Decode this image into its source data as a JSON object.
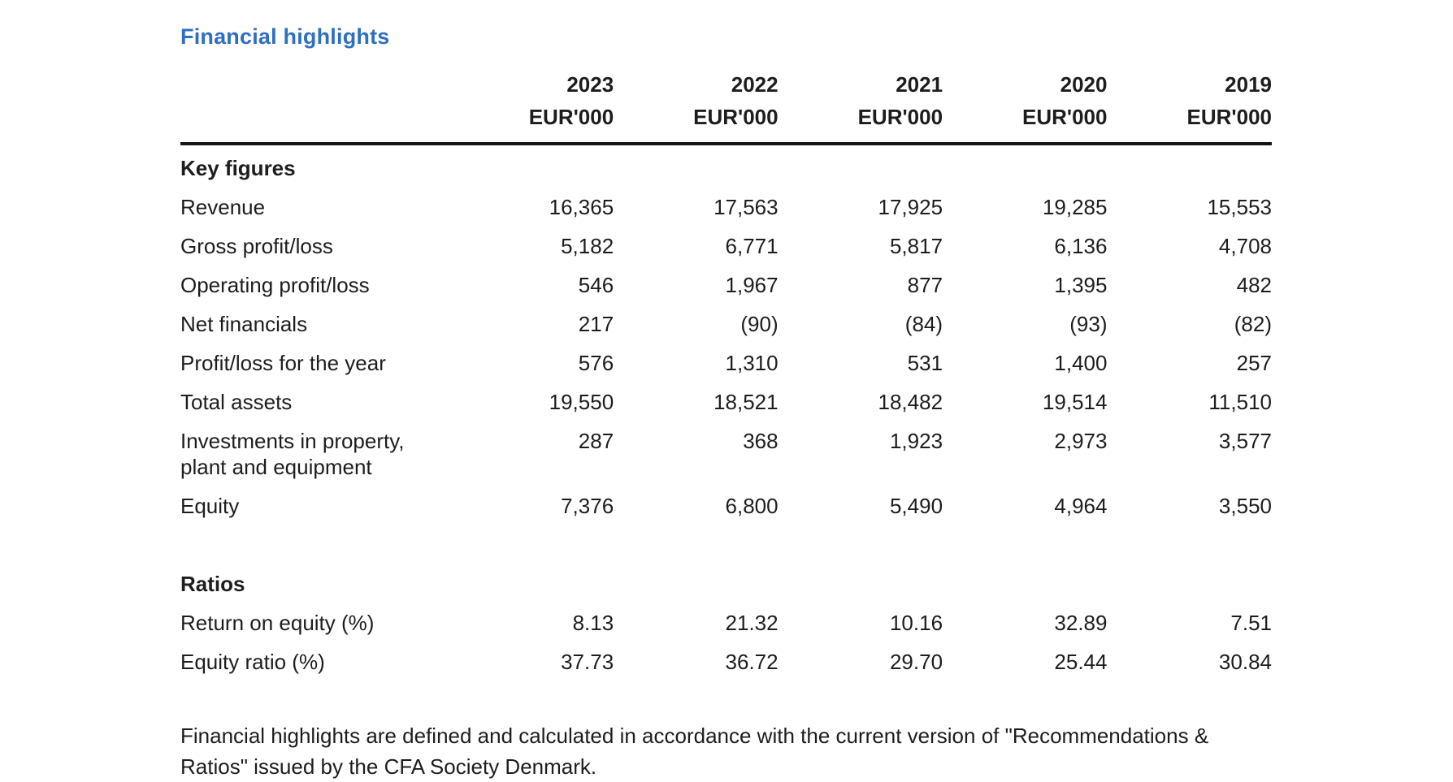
{
  "page": {
    "title": "Financial highlights",
    "title_color": "#2e6fc0"
  },
  "table": {
    "columns": [
      {
        "year": "2023",
        "unit": "EUR'000"
      },
      {
        "year": "2022",
        "unit": "EUR'000"
      },
      {
        "year": "2021",
        "unit": "EUR'000"
      },
      {
        "year": "2020",
        "unit": "EUR'000"
      },
      {
        "year": "2019",
        "unit": "EUR'000"
      }
    ],
    "sections": [
      {
        "heading": "Key figures",
        "rows": [
          {
            "label": "Revenue",
            "values": [
              "16,365",
              "17,563",
              "17,925",
              "19,285",
              "15,553"
            ]
          },
          {
            "label": "Gross profit/loss",
            "values": [
              "5,182",
              "6,771",
              "5,817",
              "6,136",
              "4,708"
            ]
          },
          {
            "label": "Operating profit/loss",
            "values": [
              "546",
              "1,967",
              "877",
              "1,395",
              "482"
            ]
          },
          {
            "label": "Net financials",
            "values": [
              "217",
              "(90)",
              "(84)",
              "(93)",
              "(82)"
            ]
          },
          {
            "label": "Profit/loss for the year",
            "values": [
              "576",
              "1,310",
              "531",
              "1,400",
              "257"
            ]
          },
          {
            "label": "Total assets",
            "values": [
              "19,550",
              "18,521",
              "18,482",
              "19,514",
              "11,510"
            ]
          },
          {
            "label": "Investments in property, plant and equipment",
            "values": [
              "287",
              "368",
              "1,923",
              "2,973",
              "3,577"
            ]
          },
          {
            "label": "Equity",
            "values": [
              "7,376",
              "6,800",
              "5,490",
              "4,964",
              "3,550"
            ]
          }
        ]
      },
      {
        "heading": "Ratios",
        "rows": [
          {
            "label": "Return on equity (%)",
            "values": [
              "8.13",
              "21.32",
              "10.16",
              "32.89",
              "7.51"
            ]
          },
          {
            "label": "Equity ratio (%)",
            "values": [
              "37.73",
              "36.72",
              "29.70",
              "25.44",
              "30.84"
            ]
          }
        ]
      }
    ]
  },
  "footnote": "Financial highlights are defined and calculated in accordance with the current version of \"Recommendations & Ratios\" issued by the CFA Society Denmark."
}
